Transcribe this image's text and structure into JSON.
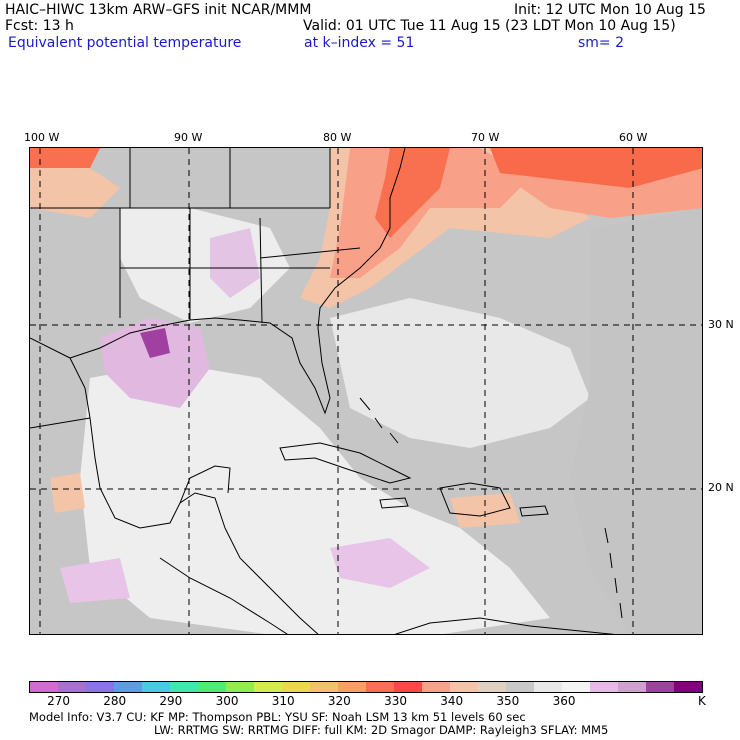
{
  "header": {
    "model_title": "HAIC–HIWC 13km ARW–GFS init   NCAR/MMM",
    "init_time": "Init: 12 UTC Mon 10 Aug 15",
    "forecast": "Fcst:   13 h",
    "valid_time": "Valid: 01 UTC Tue 11 Aug 15 (23 LDT Mon 10 Aug 15)",
    "field_name": "Equivalent potential temperature",
    "level": "at k–index =  51",
    "smoothing": "sm= 2"
  },
  "map": {
    "lon_labels": [
      "100 W",
      "90 W",
      "80 W",
      "70 W",
      "60 W"
    ],
    "lat_labels": [
      "30 N",
      "20 N"
    ]
  },
  "colorbar": {
    "colors": [
      "#d468d4",
      "#a870d4",
      "#8a74e6",
      "#5a9ee6",
      "#4ac8e6",
      "#40e8b0",
      "#50ec70",
      "#90ec50",
      "#d4ec50",
      "#ecd850",
      "#f4c070",
      "#f8a060",
      "#f87050",
      "#f84848",
      "#f8a088",
      "#f4c4a8",
      "#e0d0c0",
      "#c8c8c8",
      "#e8e8e8",
      "#f4f4f4",
      "#e8b8e8",
      "#d0a0d0",
      "#a040a0",
      "#800080"
    ],
    "labels": [
      "270",
      "280",
      "290",
      "300",
      "310",
      "320",
      "330",
      "340",
      "350",
      "360"
    ],
    "unit": "K"
  },
  "model_info": {
    "line1": "Model Info: V3.7      CU: KF      MP: Thompson     PBL: YSU      SF: Noah LSM     13 km    51 levels   60 sec",
    "line2": "LW: RRTMG    SW: RRTMG   DIFF: full    KM: 2D Smagor DAMP: Rayleigh3  SFLAY: MM5"
  }
}
